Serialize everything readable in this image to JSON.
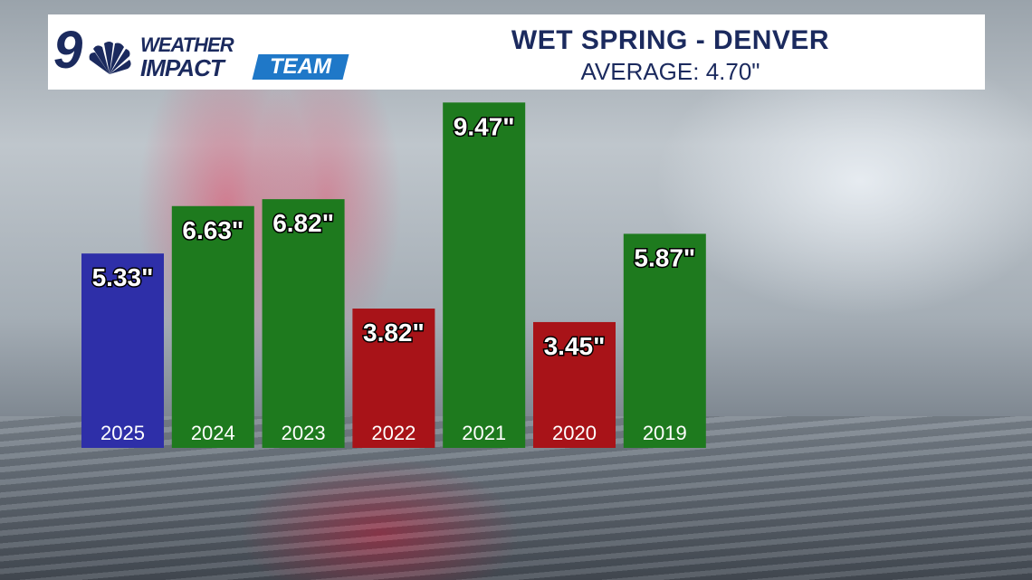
{
  "branding": {
    "channel_number": "9",
    "line1": "WEATHER",
    "line2": "IMPACT",
    "line3": "TEAM",
    "navy": "#1b2a5e",
    "accent": "#1f78c8"
  },
  "chart_data": {
    "type": "bar",
    "title": "WET SPRING - DENVER",
    "subtitle": "AVERAGE: 4.70\"",
    "average": 4.7,
    "unit": "inches",
    "ylim": [
      0,
      9.8
    ],
    "grid": false,
    "legend": "none",
    "categories": [
      "2025",
      "2024",
      "2023",
      "2022",
      "2021",
      "2020",
      "2019"
    ],
    "values": [
      5.33,
      6.63,
      6.82,
      3.82,
      9.47,
      3.45,
      5.87
    ],
    "value_labels": [
      "5.33\"",
      "6.63\"",
      "6.82\"",
      "3.82\"",
      "9.47\"",
      "3.45\"",
      "5.87\""
    ],
    "colors": [
      "#2e2fa8",
      "#1e7a1e",
      "#1e7a1e",
      "#a81318",
      "#1e7a1e",
      "#a81318",
      "#1e7a1e"
    ],
    "color_meaning": {
      "current_year": "#2e2fa8",
      "above_average": "#1e7a1e",
      "below_average": "#a81318"
    }
  }
}
